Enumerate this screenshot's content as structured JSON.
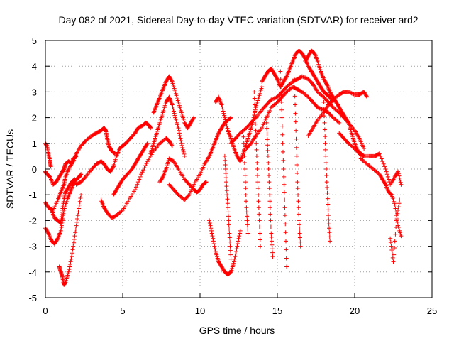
{
  "chart_data": {
    "type": "scatter",
    "title": "Day 082 of 2021, Sidereal Day-to-day VTEC variation (SDTVAR) for receiver ard2",
    "xlabel": "GPS time / hours",
    "ylabel": "SDTVAR / TECUs",
    "xlim": [
      0,
      25
    ],
    "ylim": [
      -5,
      5
    ],
    "x_ticks": [
      "0",
      "5",
      "10",
      "15",
      "20",
      "25"
    ],
    "y_ticks": [
      "-5",
      "-4",
      "-3",
      "-2",
      "-1",
      "0",
      "1",
      "2",
      "3",
      "4",
      "5"
    ],
    "grid": true,
    "marker": "+",
    "marker_color": "#ff0000",
    "series": [
      {
        "name": "trace-1",
        "x": [
          0.0,
          0.1,
          0.2,
          0.3,
          0.35
        ],
        "y": [
          1.0,
          0.9,
          0.6,
          0.3,
          0.1
        ]
      },
      {
        "name": "trace-2",
        "x": [
          0.0,
          0.1,
          0.3,
          0.5,
          0.7,
          0.9,
          1.1,
          1.2,
          1.3,
          1.5,
          1.7,
          1.8,
          2.0
        ],
        "y": [
          -0.1,
          -0.2,
          -0.3,
          -0.6,
          -0.5,
          -0.3,
          -0.1,
          0.0,
          0.2,
          0.3,
          0.2,
          0.4,
          0.5
        ]
      },
      {
        "name": "trace-3",
        "x": [
          0.0,
          0.2,
          0.5,
          0.8,
          1.0,
          1.2,
          1.3,
          1.5,
          1.8,
          2.0,
          2.3,
          2.6,
          3.0,
          3.3,
          3.6,
          3.8,
          3.9,
          4.0,
          4.1,
          4.2,
          4.3,
          4.5
        ],
        "y": [
          -1.3,
          -1.5,
          -1.6,
          -1.2,
          -0.9,
          -0.6,
          -0.3,
          0.0,
          0.3,
          0.6,
          0.9,
          1.1,
          1.3,
          1.4,
          1.5,
          1.6,
          1.5,
          1.2,
          0.9,
          0.8,
          0.7,
          0.6
        ]
      },
      {
        "name": "trace-4",
        "x": [
          0.0,
          0.2,
          0.4,
          0.6,
          0.8,
          1.0,
          1.1,
          1.2,
          1.4,
          1.6,
          1.8,
          2.0,
          2.2,
          2.3
        ],
        "y": [
          -2.3,
          -2.5,
          -2.8,
          -2.9,
          -2.7,
          -2.4,
          -2.0,
          -1.6,
          -1.2,
          -0.9,
          -0.6,
          -0.4,
          -0.3,
          -0.2
        ]
      },
      {
        "name": "trace-5",
        "x": [
          0.4,
          0.6,
          0.8,
          1.0,
          1.1,
          1.2,
          1.3,
          1.5,
          1.7,
          1.9
        ],
        "y": [
          -1.6,
          -1.9,
          -2.0,
          -2.1,
          -1.6,
          -1.2,
          -0.9,
          -0.7,
          -0.5,
          -0.4
        ]
      },
      {
        "name": "trace-6",
        "x": [
          0.9,
          1.0,
          1.1,
          1.2,
          1.3,
          1.5,
          1.7,
          1.9,
          2.1,
          2.3
        ],
        "y": [
          -3.8,
          -4.0,
          -4.2,
          -4.5,
          -4.4,
          -4.0,
          -3.4,
          -2.6,
          -1.8,
          -1.0
        ]
      },
      {
        "name": "trace-7",
        "x": [
          2.0,
          2.3,
          2.6,
          3.0,
          3.3,
          3.6,
          3.8,
          4.0,
          4.2,
          4.4,
          4.6,
          4.8,
          5.0,
          5.2,
          5.5,
          5.8,
          6.0,
          6.3,
          6.5,
          6.7,
          6.8
        ],
        "y": [
          -0.6,
          -0.5,
          -0.3,
          0.0,
          0.2,
          0.3,
          0.2,
          0.0,
          -0.1,
          0.1,
          0.5,
          0.8,
          0.9,
          1.0,
          1.2,
          1.4,
          1.6,
          1.7,
          1.8,
          1.7,
          1.6
        ]
      },
      {
        "name": "trace-8",
        "x": [
          4.4,
          4.6,
          4.8,
          5.0,
          5.3,
          5.6,
          5.8,
          6.0,
          6.2,
          6.4,
          6.6
        ],
        "y": [
          -1.0,
          -0.8,
          -0.6,
          -0.4,
          -0.2,
          0.0,
          0.2,
          0.4,
          0.6,
          0.8,
          1.0
        ]
      },
      {
        "name": "trace-9",
        "x": [
          3.6,
          3.8,
          4.0,
          4.3,
          4.6,
          5.0,
          5.4,
          5.8,
          6.2,
          6.6,
          7.0,
          7.4,
          7.8,
          8.0,
          8.2
        ],
        "y": [
          -1.2,
          -1.5,
          -1.7,
          -1.9,
          -1.8,
          -1.6,
          -1.2,
          -0.8,
          -0.2,
          0.3,
          0.7,
          1.0,
          1.2,
          1.1,
          0.9
        ]
      },
      {
        "name": "trace-10",
        "x": [
          7.0,
          7.2,
          7.4,
          7.6,
          7.8,
          8.0,
          8.2,
          8.4,
          8.6,
          8.8,
          9.0,
          9.2,
          9.4,
          9.6
        ],
        "y": [
          2.2,
          2.5,
          2.8,
          3.1,
          3.4,
          3.6,
          3.4,
          3.0,
          2.6,
          2.2,
          1.8,
          1.6,
          1.8,
          2.0
        ]
      },
      {
        "name": "trace-11",
        "x": [
          6.8,
          7.0,
          7.2,
          7.4,
          7.6,
          7.8,
          8.0,
          8.2,
          8.4,
          8.6,
          8.8,
          9.0
        ],
        "y": [
          0.6,
          1.0,
          1.4,
          1.8,
          2.2,
          2.6,
          2.8,
          2.5,
          2.0,
          1.6,
          1.0,
          0.5
        ]
      },
      {
        "name": "trace-12",
        "x": [
          7.4,
          7.6,
          7.8,
          8.0,
          8.3,
          8.6,
          9.0,
          9.3,
          9.6,
          9.8,
          10.0,
          10.2,
          10.4
        ],
        "y": [
          -0.5,
          -0.3,
          0.0,
          0.4,
          0.3,
          0.0,
          -0.4,
          -0.6,
          -0.8,
          -0.9,
          -0.8,
          -0.6,
          -0.5
        ]
      },
      {
        "name": "trace-13",
        "x": [
          8.0,
          8.3,
          8.6,
          9.0,
          9.3,
          9.6,
          10.0,
          10.3,
          10.6,
          10.8,
          11.0,
          11.2,
          11.4,
          11.6,
          11.8,
          12.0
        ],
        "y": [
          -0.6,
          -0.8,
          -1.0,
          -1.2,
          -1.0,
          -0.6,
          -0.2,
          0.2,
          0.5,
          0.8,
          1.1,
          1.4,
          1.6,
          1.8,
          1.9,
          2.0
        ]
      },
      {
        "name": "trace-14",
        "x": [
          10.6,
          10.8,
          11.0,
          11.2,
          11.4,
          11.6,
          11.8,
          12.0,
          12.2,
          12.4,
          12.6
        ],
        "y": [
          -2.0,
          -2.6,
          -3.2,
          -3.6,
          -3.8,
          -4.0,
          -4.1,
          -4.0,
          -3.6,
          -3.0,
          -2.4
        ]
      },
      {
        "name": "trace-15",
        "x": [
          11.0,
          11.2,
          11.4,
          11.6,
          11.8,
          12.0,
          12.2,
          12.4,
          12.6,
          12.8,
          13.0,
          13.2,
          13.4,
          13.6,
          13.8,
          14.0
        ],
        "y": [
          2.6,
          2.8,
          2.5,
          2.0,
          1.5,
          1.2,
          0.8,
          0.5,
          0.3,
          0.6,
          1.0,
          1.4,
          1.8,
          2.4,
          2.8,
          3.2
        ]
      },
      {
        "name": "trace-16",
        "x": [
          12.0,
          12.3,
          12.6,
          13.0,
          13.3,
          13.6,
          14.0,
          14.3,
          14.6,
          15.0,
          15.3,
          15.6,
          16.0,
          16.3,
          16.6,
          17.0,
          17.3,
          17.6,
          18.0,
          18.3,
          18.6,
          19.0,
          19.3,
          19.6,
          20.0,
          20.3,
          20.6
        ],
        "y": [
          1.0,
          1.2,
          1.4,
          1.6,
          1.8,
          2.0,
          2.3,
          2.5,
          2.7,
          2.8,
          3.0,
          3.2,
          3.4,
          3.5,
          3.6,
          3.5,
          3.3,
          3.0,
          2.8,
          2.6,
          2.4,
          2.2,
          2.0,
          1.8,
          1.5,
          1.2,
          0.8
        ]
      },
      {
        "name": "trace-17",
        "x": [
          13.0,
          13.3,
          13.6,
          14.0,
          14.3,
          14.6,
          15.0,
          15.3,
          15.6,
          16.0,
          16.3,
          16.6,
          17.0,
          17.3,
          17.6,
          18.0,
          18.3,
          18.6,
          19.0
        ],
        "y": [
          0.8,
          1.0,
          1.3,
          1.6,
          2.0,
          2.4,
          2.6,
          2.8,
          3.0,
          3.2,
          3.1,
          3.0,
          2.8,
          2.6,
          2.4,
          2.3,
          2.2,
          2.0,
          1.8
        ]
      },
      {
        "name": "trace-18",
        "x": [
          14.0,
          14.2,
          14.4,
          14.6,
          14.8,
          15.0,
          15.2,
          15.4,
          15.6,
          15.8,
          16.0,
          16.2,
          16.4,
          16.6,
          16.8,
          17.0,
          17.2,
          17.4,
          17.6,
          17.8,
          18.0,
          18.2,
          18.4,
          18.6
        ],
        "y": [
          3.4,
          3.6,
          3.8,
          3.9,
          3.7,
          3.5,
          3.2,
          3.4,
          3.6,
          3.9,
          4.2,
          4.5,
          4.6,
          4.5,
          4.3,
          4.0,
          3.8,
          3.6,
          3.4,
          3.2,
          3.0,
          2.9,
          2.8,
          2.6
        ]
      },
      {
        "name": "trace-19",
        "x": [
          16.8,
          17.0,
          17.2,
          17.4,
          17.6,
          17.8,
          18.0,
          18.2,
          18.4,
          18.6,
          18.8,
          19.0,
          19.2,
          19.4,
          19.6,
          19.8,
          20.0,
          20.2,
          20.4,
          20.6
        ],
        "y": [
          4.2,
          4.4,
          4.6,
          4.5,
          4.2,
          3.8,
          3.5,
          3.3,
          3.0,
          2.8,
          2.6,
          2.4,
          2.2,
          2.0,
          1.8,
          1.4,
          1.0,
          0.7,
          0.6,
          0.5
        ]
      },
      {
        "name": "trace-20",
        "x": [
          17.0,
          17.3,
          17.6,
          18.0,
          18.3,
          18.6,
          19.0,
          19.3,
          19.6,
          20.0,
          20.3,
          20.6,
          20.8
        ],
        "y": [
          1.3,
          1.6,
          1.9,
          2.2,
          2.5,
          2.7,
          2.9,
          3.0,
          3.0,
          2.9,
          2.9,
          3.0,
          2.8
        ]
      },
      {
        "name": "trace-21",
        "x": [
          19.0,
          19.3,
          19.6,
          20.0,
          20.3,
          20.6,
          21.0,
          21.3,
          21.6,
          22.0,
          22.3,
          22.6,
          22.8,
          23.0
        ],
        "y": [
          1.4,
          1.2,
          1.0,
          0.8,
          0.6,
          0.5,
          0.5,
          0.5,
          0.6,
          0.0,
          -0.6,
          -0.3,
          -0.1,
          -0.6
        ]
      },
      {
        "name": "trace-22",
        "x": [
          20.4,
          20.8,
          21.2,
          21.6,
          21.8,
          22.0,
          22.2,
          22.4,
          22.6,
          22.8,
          23.0
        ],
        "y": [
          0.4,
          0.2,
          0.0,
          -0.2,
          -0.4,
          -0.6,
          -0.9,
          -1.0,
          -1.4,
          -2.2,
          -2.6
        ]
      },
      {
        "name": "trace-23",
        "x": [
          22.3,
          22.5,
          22.7,
          22.9
        ],
        "y": [
          -2.7,
          -3.6,
          -2.0,
          -1.2
        ]
      },
      {
        "name": "drop-1",
        "x": [
          11.6,
          11.7,
          11.8,
          11.9,
          12.0
        ],
        "y": [
          0.5,
          -0.5,
          -1.5,
          -2.5,
          -3.5
        ]
      },
      {
        "name": "drop-2",
        "x": [
          13.5,
          13.6,
          13.7,
          13.8,
          13.9
        ],
        "y": [
          3.0,
          1.5,
          0.0,
          -1.5,
          -3.0
        ]
      },
      {
        "name": "drop-3",
        "x": [
          14.3,
          14.4,
          14.5,
          14.6,
          14.7
        ],
        "y": [
          1.8,
          0.5,
          -1.0,
          -2.5,
          -3.4
        ]
      },
      {
        "name": "drop-4",
        "x": [
          15.2,
          15.3,
          15.4,
          15.5,
          15.6
        ],
        "y": [
          3.8,
          2.0,
          0.0,
          -1.8,
          -3.8
        ]
      },
      {
        "name": "drop-5",
        "x": [
          16.1,
          16.2,
          16.3,
          16.4,
          16.5
        ],
        "y": [
          3.5,
          1.5,
          -0.5,
          -2.0,
          -3.0
        ]
      },
      {
        "name": "drop-6",
        "x": [
          18.0,
          18.1,
          18.2,
          18.3,
          18.4
        ],
        "y": [
          2.6,
          1.0,
          -0.5,
          -1.8,
          -2.8
        ]
      },
      {
        "name": "drop-7",
        "x": [
          12.8,
          12.9,
          13.0,
          13.1
        ],
        "y": [
          1.5,
          0.0,
          -1.5,
          -2.5
        ]
      }
    ]
  }
}
